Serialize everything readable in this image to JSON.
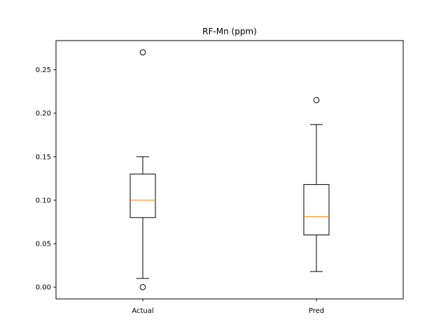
{
  "chart_data": {
    "type": "box",
    "title": "RF-Mn (ppm)",
    "xlabel": "",
    "ylabel": "",
    "categories": [
      "Actual",
      "Pred"
    ],
    "ylim": [
      -0.0135,
      0.2835
    ],
    "yticks": [
      0.0,
      0.05,
      0.1,
      0.15,
      0.2,
      0.25
    ],
    "ytick_labels": [
      "0.00",
      "0.05",
      "0.10",
      "0.15",
      "0.20",
      "0.25"
    ],
    "grid": false,
    "colors": {
      "box": "#000000",
      "median": "#ff7f0e"
    },
    "boxes": [
      {
        "name": "Actual",
        "whisker_low": 0.01,
        "q1": 0.08,
        "median": 0.1,
        "q3": 0.13,
        "whisker_high": 0.15,
        "outliers": [
          0.27,
          0.0
        ]
      },
      {
        "name": "Pred",
        "whisker_low": 0.018,
        "q1": 0.06,
        "median": 0.081,
        "q3": 0.118,
        "whisker_high": 0.187,
        "outliers": [
          0.215
        ]
      }
    ]
  }
}
